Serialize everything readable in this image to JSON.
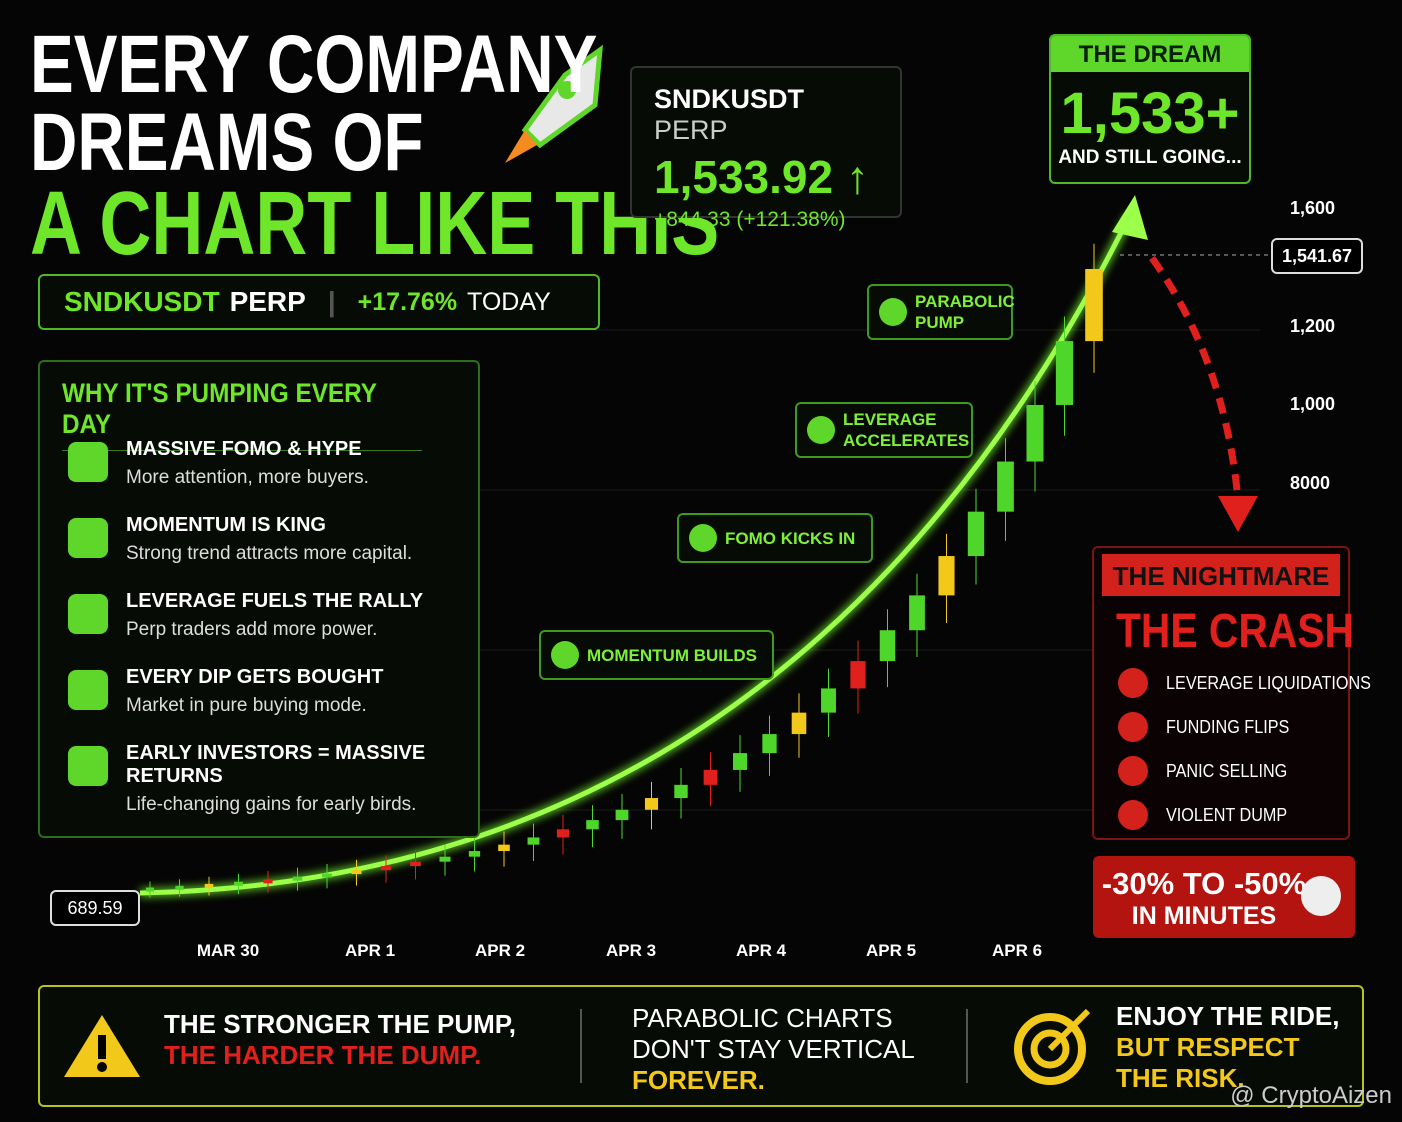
{
  "header": {
    "title_lines": [
      "EVERY COMPANY",
      "DREAMS OF",
      "A CHART LIKE THIS"
    ]
  },
  "ticker_bar": {
    "symbol": "SNDKUSDT",
    "suffix": "PERP",
    "change": "+17.76%",
    "period": "TODAY"
  },
  "price_box": {
    "symbol": "SNDKUSDT",
    "suffix": "PERP",
    "price": "1,533.92",
    "change": "+844.33 (+121.38%)"
  },
  "dream": {
    "label": "THE DREAM",
    "value": "1,533+",
    "note": "AND STILL GOING..."
  },
  "reasons": {
    "heading": "WHY IT'S PUMPING EVERY DAY",
    "items": [
      {
        "title": "MASSIVE FOMO & HYPE",
        "text": "More attention, more buyers."
      },
      {
        "title": "MOMENTUM IS KING",
        "text": "Strong trend attracts more capital."
      },
      {
        "title": "LEVERAGE FUELS THE RALLY",
        "text": "Perp traders add more power."
      },
      {
        "title": "EVERY DIP GETS BOUGHT",
        "text": "Market in pure buying mode."
      },
      {
        "title": "EARLY INVESTORS = MASSIVE RETURNS",
        "text": "Life-changing gains for early birds."
      }
    ]
  },
  "chart": {
    "y_labels": [
      "1,600",
      "1,200",
      "1,000",
      "8000"
    ],
    "current_price": "1,541.67",
    "start_price": "689.59",
    "dates": [
      "MAR 30",
      "APR 1",
      "APR 2",
      "APR 3",
      "APR 4",
      "APR 5",
      "APR 6"
    ],
    "annotations": [
      "PARABOLIC PUMP",
      "LEVERAGE ACCELERATES",
      "FOMO KICKS IN",
      "MOMENTUM BUILDS"
    ]
  },
  "nightmare": {
    "label": "THE NIGHTMARE",
    "title": "THE CRASH",
    "items": [
      "LEVERAGE LIQUIDATIONS",
      "FUNDING FLIPS",
      "PANIC SELLING",
      "VIOLENT DUMP"
    ],
    "outcome": [
      "-30% TO -50%",
      "IN MINUTES"
    ]
  },
  "footer": {
    "blocks": [
      {
        "lines": [
          "THE STRONGER THE PUMP,",
          "THE HARDER THE DUMP."
        ]
      },
      {
        "lines": [
          "PARABOLIC CHARTS",
          "DON'T STAY VERTICAL",
          "FOREVER."
        ]
      },
      {
        "lines": [
          "ENJOY THE RIDE,",
          "BUT RESPECT",
          "THE RISK."
        ]
      }
    ]
  },
  "watermark": "@ CryptoAizen"
}
